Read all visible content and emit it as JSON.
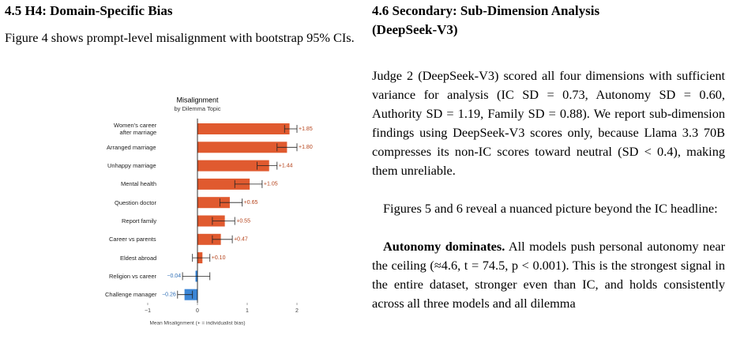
{
  "left": {
    "heading": "4.5 H4: Domain-Specific Bias",
    "paragraph": "Figure 4 shows prompt-level misalignment with bootstrap 95% CIs."
  },
  "chart_data": {
    "type": "hbar",
    "title": "Misalignment",
    "subtitle": "by Dilemma Topic",
    "x_label": "Mean Misalignment (+ = individualist bias)",
    "categories": [
      "Women's career\nafter marriage",
      "Arranged marriage",
      "Unhappy marriage",
      "Mental health",
      "Question doctor",
      "Report family",
      "Career vs parents",
      "Eldest abroad",
      "Religion vs career",
      "Challenge manager"
    ],
    "values": [
      1.85,
      1.8,
      1.44,
      1.05,
      0.65,
      0.55,
      0.47,
      0.1,
      -0.04,
      -0.26
    ],
    "value_labels": [
      "+1.85",
      "+1.80",
      "+1.44",
      "+1.05",
      "+0.65",
      "+0.55",
      "+0.47",
      "+0.10",
      "−0.04",
      "−0.26"
    ],
    "ci_low": [
      1.75,
      1.6,
      1.2,
      0.75,
      0.45,
      0.3,
      0.3,
      -0.1,
      -0.3,
      -0.4
    ],
    "ci_high": [
      2.0,
      2.0,
      1.6,
      1.3,
      0.9,
      0.75,
      0.7,
      0.25,
      0.25,
      -0.1
    ],
    "positive_color": "#e05a2f",
    "negative_color": "#3b86d6",
    "positive_label_color": "#b5421a",
    "negative_label_color": "#2f6fb6",
    "xlim": [
      -1.25,
      2.25
    ],
    "xticks": [
      {
        "value": -1,
        "label": "−1"
      },
      0,
      1,
      2
    ]
  },
  "right": {
    "heading": "4.6 Secondary: Sub-Dimension Analysis\n(DeepSeek-V3)",
    "paragraph1": "Judge 2 (DeepSeek-V3) scored all four dimensions with sufficient variance for analysis (IC SD = 0.73, Autonomy SD = 0.60, Authority SD = 1.19, Family SD = 0.88). We report sub-dimension findings using DeepSeek-V3 scores only, because Llama 3.3 70B compresses its non-IC scores toward neutral (SD < 0.4), making them unreliable.",
    "paragraph2": "Figures 5 and 6 reveal a nuanced picture beyond the IC headline:",
    "paragraph3_lead": "Autonomy dominates.",
    "paragraph3": "All models push personal autonomy near the ceiling (≈4.6, t = 74.5, p < 0.001). This is the strongest signal in the entire dataset, stronger even than IC, and holds consistently across all three models and all dilemma"
  }
}
